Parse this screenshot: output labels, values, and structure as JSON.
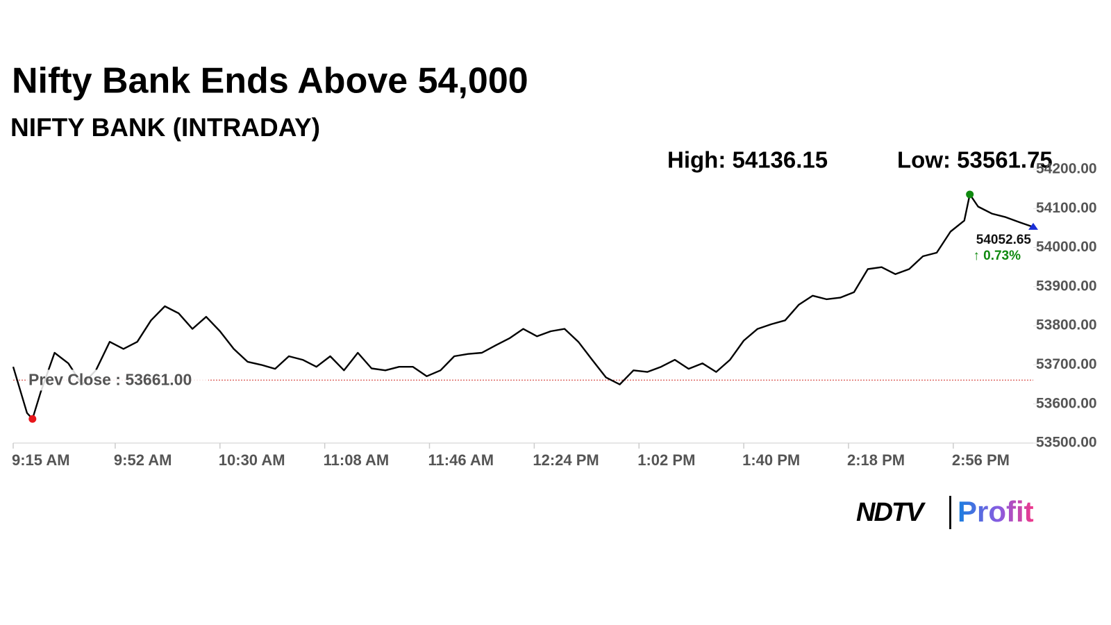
{
  "chart_data": {
    "type": "line",
    "title": "Nifty Bank Ends Above 54,000",
    "subtitle": "NIFTY BANK (INTRADAY)",
    "x": [
      "9:15 AM",
      "9:20 AM",
      "9:22 AM",
      "9:25 AM",
      "9:30 AM",
      "9:35 AM",
      "9:40 AM",
      "9:45 AM",
      "9:50 AM",
      "9:55 AM",
      "10:00 AM",
      "10:05 AM",
      "10:10 AM",
      "10:15 AM",
      "10:20 AM",
      "10:25 AM",
      "10:30 AM",
      "10:35 AM",
      "10:40 AM",
      "10:45 AM",
      "10:50 AM",
      "10:55 AM",
      "11:00 AM",
      "11:05 AM",
      "11:10 AM",
      "11:15 AM",
      "11:20 AM",
      "11:25 AM",
      "11:30 AM",
      "11:35 AM",
      "11:40 AM",
      "11:45 AM",
      "11:50 AM",
      "11:55 AM",
      "12:00 PM",
      "12:05 PM",
      "12:10 PM",
      "12:15 PM",
      "12:20 PM",
      "12:25 PM",
      "12:30 PM",
      "12:35 PM",
      "12:40 PM",
      "12:45 PM",
      "12:50 PM",
      "12:55 PM",
      "1:00 PM",
      "1:05 PM",
      "1:10 PM",
      "1:15 PM",
      "1:20 PM",
      "1:25 PM",
      "1:30 PM",
      "1:35 PM",
      "1:40 PM",
      "1:45 PM",
      "1:50 PM",
      "1:55 PM",
      "2:00 PM",
      "2:05 PM",
      "2:10 PM",
      "2:15 PM",
      "2:20 PM",
      "2:25 PM",
      "2:30 PM",
      "2:35 PM",
      "2:40 PM",
      "2:45 PM",
      "2:50 PM",
      "2:55 PM",
      "3:00 PM",
      "3:02 PM",
      "3:05 PM",
      "3:10 PM",
      "3:15 PM",
      "3:20 PM",
      "3:25 PM"
    ],
    "series": [
      {
        "color": "#000000",
        "values": [
          53695,
          53577,
          53561.75,
          53631,
          53731,
          53704,
          53650,
          53686,
          53759,
          53741,
          53759,
          53814,
          53850,
          53832,
          53792,
          53823,
          53786,
          53741,
          53708,
          53700,
          53690,
          53722,
          53713,
          53695,
          53722,
          53686,
          53731,
          53691,
          53686,
          53695,
          53695,
          53671,
          53686,
          53722,
          53728,
          53731,
          53750,
          53768,
          53792,
          53773,
          53786,
          53792,
          53759,
          53713,
          53668,
          53650,
          53686,
          53682,
          53695,
          53713,
          53690,
          53704,
          53682,
          53713,
          53762,
          53792,
          53804,
          53814,
          53854,
          53877,
          53868,
          53872,
          53886,
          53945,
          53950,
          53932,
          53945,
          53978,
          53987,
          54041,
          54069,
          54136.15,
          54105,
          54087,
          54078,
          54065,
          54052.65
        ]
      }
    ],
    "xlim": [
      "9:15 AM",
      "3:25 PM"
    ],
    "xticks": [
      "9:15 AM",
      "9:52 AM",
      "10:30 AM",
      "11:08 AM",
      "11:46 AM",
      "12:24 PM",
      "1:02 PM",
      "1:40 PM",
      "2:18 PM",
      "2:56 PM"
    ],
    "ylim": [
      53500,
      54200
    ],
    "yticks": [
      {
        "value": 53500,
        "label": "53500.00"
      },
      {
        "value": 53600,
        "label": "53600.00"
      },
      {
        "value": 53700,
        "label": "53700.00"
      },
      {
        "value": 53800,
        "label": "53800.00"
      },
      {
        "value": 53900,
        "label": "53900.00"
      },
      {
        "value": 54000,
        "label": "54000.00"
      },
      {
        "value": 54100,
        "label": "54100.00"
      },
      {
        "value": 54200,
        "label": "54200.00"
      }
    ],
    "high": {
      "x": "3:02 PM",
      "value": 54136.15,
      "label": "High: 54136.15",
      "color": "#108a10"
    },
    "low": {
      "x": "9:22 AM",
      "value": 53561.75,
      "label": "Low: 53561.75",
      "color": "#e8161b"
    },
    "prev_close": {
      "value": 53661,
      "label": "Prev Close : 53661.00",
      "color": "#d9534f"
    },
    "last": {
      "x": "3:25 PM",
      "value": 54052.65,
      "label": "54052.65",
      "change": 0.73,
      "change_label": "↑ 0.73%",
      "color": "#1a2fd6",
      "change_color": "#108a10"
    },
    "logo": {
      "left": "NDTV",
      "right": "Profit"
    }
  }
}
